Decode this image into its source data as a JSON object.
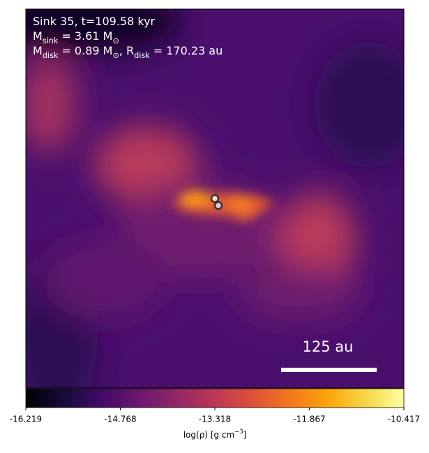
{
  "chart_data": {
    "type": "heatmap",
    "colormap": "inferno",
    "annotations": [
      [
        {
          "text": "Sink 35, t=109.58 kyr"
        }
      ],
      [
        {
          "text": "M"
        },
        {
          "sub": "sink"
        },
        {
          "text": " = 3.61 M"
        },
        {
          "sub": "⊙"
        }
      ],
      [
        {
          "text": "M"
        },
        {
          "sub": "disk"
        },
        {
          "text": " = 0.89 M"
        },
        {
          "sub": "⊙"
        },
        {
          "text": ", R"
        },
        {
          "sub": "disk"
        },
        {
          "text": " = 170.23 au"
        }
      ]
    ],
    "scale_bar": {
      "label": "125 au"
    },
    "colorbar": {
      "clim": [
        -16.219,
        -10.417
      ],
      "ticks": [
        -16.219,
        -14.768,
        -13.318,
        -11.867,
        -10.417
      ],
      "label": [
        {
          "text": "log(ρ) [g cm"
        },
        {
          "sup": "−3"
        },
        {
          "text": "]"
        }
      ]
    }
  }
}
